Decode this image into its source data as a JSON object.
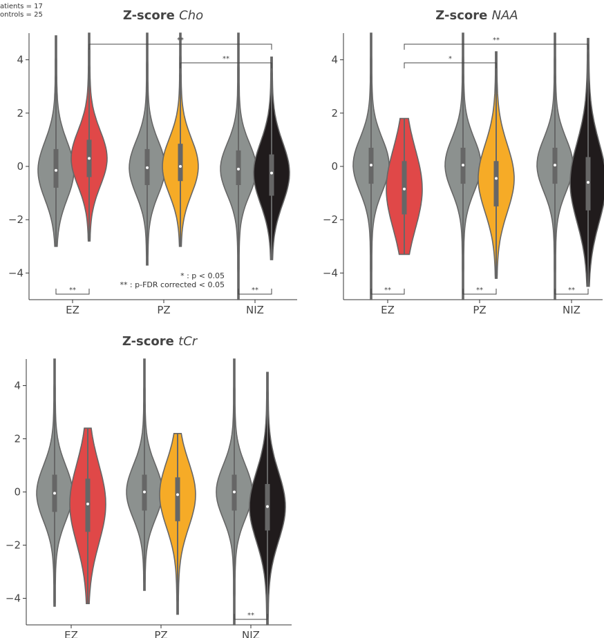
{
  "legend_note": {
    "patients": "atients = 17",
    "controls": "ontrols = 25"
  },
  "significance_note": {
    "line1": "* : p < 0.05",
    "line2": "** : p-FDR corrected < 0.05"
  },
  "colors": {
    "control": "#8c918f",
    "EZ": "#e04848",
    "PZ": "#f6ab27",
    "NIZ": "#201b1c",
    "axis": "#333333",
    "box": "#666666",
    "median": "#ffffff"
  },
  "chart_data": [
    {
      "type": "violin",
      "title_bold": "Z-score",
      "title_italic": "Cho",
      "xlabel": "",
      "ylabel": "",
      "categories": [
        "EZ",
        "PZ",
        "NIZ"
      ],
      "ylim": [
        -5,
        5
      ],
      "yticks": [
        -4,
        -2,
        0,
        2,
        4
      ],
      "series": [
        {
          "group": "EZ",
          "role": "control",
          "median": -0.15,
          "q1": -0.8,
          "q3": 0.65,
          "min": -3.0,
          "max": 4.9
        },
        {
          "group": "EZ",
          "role": "patient",
          "median": 0.3,
          "q1": -0.4,
          "q3": 1.0,
          "min": -2.8,
          "max": 5.0
        },
        {
          "group": "PZ",
          "role": "control",
          "median": -0.05,
          "q1": -0.7,
          "q3": 0.65,
          "min": -3.7,
          "max": 5.0
        },
        {
          "group": "PZ",
          "role": "patient",
          "median": 0.0,
          "q1": -0.55,
          "q3": 0.85,
          "min": -3.0,
          "max": 5.0
        },
        {
          "group": "NIZ",
          "role": "control",
          "median": -0.1,
          "q1": -0.7,
          "q3": 0.6,
          "min": -5.0,
          "max": 5.0
        },
        {
          "group": "NIZ",
          "role": "patient",
          "median": -0.25,
          "q1": -1.1,
          "q3": 0.45,
          "min": -3.5,
          "max": 4.1
        }
      ],
      "brackets_top": [
        {
          "from": "EZ",
          "to": "NIZ",
          "label": "**"
        },
        {
          "from": "PZ",
          "to": "NIZ",
          "label": "**"
        }
      ],
      "brackets_bottom": [
        {
          "group": "EZ",
          "label": "**"
        },
        {
          "group": "NIZ",
          "label": "**"
        }
      ]
    },
    {
      "type": "violin",
      "title_bold": "Z-score",
      "title_italic": "NAA",
      "xlabel": "",
      "ylabel": "",
      "categories": [
        "EZ",
        "PZ",
        "NIZ"
      ],
      "ylim": [
        -5,
        5
      ],
      "yticks": [
        -4,
        -2,
        0,
        2,
        4
      ],
      "series": [
        {
          "group": "EZ",
          "role": "control",
          "median": 0.05,
          "q1": -0.65,
          "q3": 0.7,
          "min": -5.0,
          "max": 5.0
        },
        {
          "group": "EZ",
          "role": "patient",
          "median": -0.85,
          "q1": -1.8,
          "q3": 0.2,
          "min": -3.3,
          "max": 1.8
        },
        {
          "group": "PZ",
          "role": "control",
          "median": 0.05,
          "q1": -0.65,
          "q3": 0.7,
          "min": -5.0,
          "max": 5.0
        },
        {
          "group": "PZ",
          "role": "patient",
          "median": -0.45,
          "q1": -1.5,
          "q3": 0.2,
          "min": -4.2,
          "max": 4.3
        },
        {
          "group": "NIZ",
          "role": "control",
          "median": 0.05,
          "q1": -0.65,
          "q3": 0.7,
          "min": -5.0,
          "max": 5.0
        },
        {
          "group": "NIZ",
          "role": "patient",
          "median": -0.6,
          "q1": -1.65,
          "q3": 0.35,
          "min": -4.5,
          "max": 4.8
        }
      ],
      "brackets_top": [
        {
          "from": "EZ",
          "to": "NIZ",
          "label": "**"
        },
        {
          "from": "EZ",
          "to": "PZ",
          "label": "*"
        }
      ],
      "brackets_bottom": [
        {
          "group": "EZ",
          "label": "**"
        },
        {
          "group": "PZ",
          "label": "**"
        },
        {
          "group": "NIZ",
          "label": "**"
        }
      ]
    },
    {
      "type": "violin",
      "title_bold": "Z-score",
      "title_italic": "tCr",
      "xlabel": "",
      "ylabel": "",
      "categories": [
        "EZ",
        "PZ",
        "NIZ"
      ],
      "ylim": [
        -5,
        5
      ],
      "yticks": [
        -4,
        -2,
        0,
        2,
        4
      ],
      "series": [
        {
          "group": "EZ",
          "role": "control",
          "median": -0.05,
          "q1": -0.75,
          "q3": 0.65,
          "min": -4.3,
          "max": 5.0
        },
        {
          "group": "EZ",
          "role": "patient",
          "median": -0.45,
          "q1": -1.5,
          "q3": 0.5,
          "min": -4.2,
          "max": 2.4
        },
        {
          "group": "PZ",
          "role": "control",
          "median": 0.0,
          "q1": -0.7,
          "q3": 0.65,
          "min": -3.7,
          "max": 5.0
        },
        {
          "group": "PZ",
          "role": "patient",
          "median": -0.1,
          "q1": -1.1,
          "q3": 0.55,
          "min": -4.6,
          "max": 2.2
        },
        {
          "group": "NIZ",
          "role": "control",
          "median": 0.0,
          "q1": -0.7,
          "q3": 0.65,
          "min": -5.0,
          "max": 5.0
        },
        {
          "group": "NIZ",
          "role": "patient",
          "median": -0.55,
          "q1": -1.45,
          "q3": 0.3,
          "min": -5.0,
          "max": 4.5
        }
      ],
      "brackets_top": [],
      "brackets_bottom": [
        {
          "group": "NIZ",
          "label": "**"
        }
      ]
    }
  ]
}
